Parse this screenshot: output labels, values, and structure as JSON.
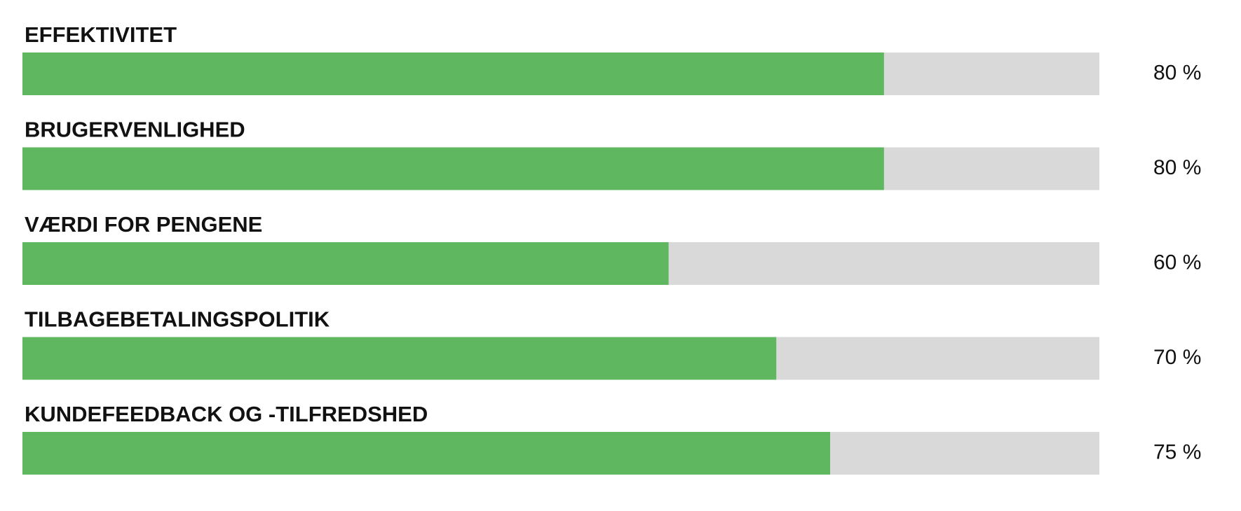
{
  "chart_data": {
    "type": "progress",
    "categories": [
      "EFFEKTIVITET",
      "BRUGERVENLIGHED",
      "VÆRDI FOR PENGENE",
      "TILBAGEBETALINGSPOLITIK",
      "KUNDEFEEDBACK OG -TILFREDSHED"
    ],
    "values": [
      80,
      80,
      60,
      70,
      75
    ],
    "value_labels": [
      "80 %",
      "80 %",
      "60 %",
      "70 %",
      "75 %"
    ],
    "xlim": [
      0,
      100
    ],
    "color": "#5fb760",
    "track_color": "#d9d9d9"
  }
}
